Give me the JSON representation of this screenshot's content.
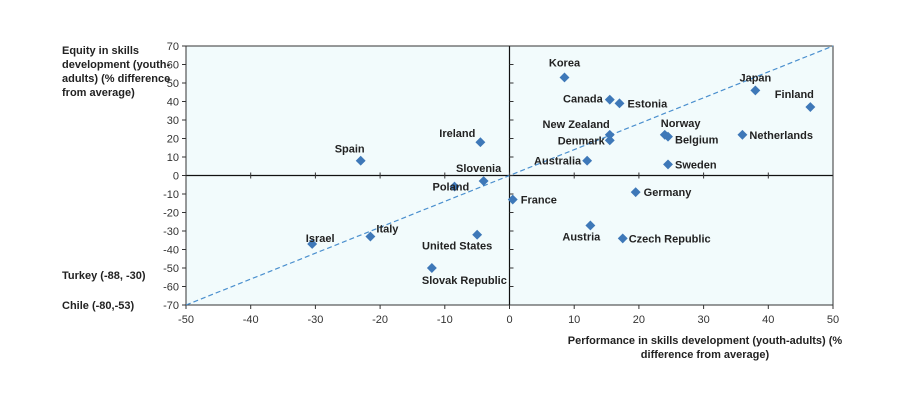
{
  "chart_data": {
    "type": "scatter",
    "xlabel": "Performance in skills development (youth-adults) (% difference from average)",
    "ylabel": "Equity in skills development (youth-adults) (% difference from average)",
    "xlim": [
      -50,
      50
    ],
    "ylim": [
      -70,
      70
    ],
    "xticks": [
      -50,
      -40,
      -30,
      -20,
      -10,
      0,
      10,
      20,
      30,
      40,
      50
    ],
    "yticks": [
      -70,
      -60,
      -50,
      -40,
      -30,
      -20,
      -10,
      0,
      10,
      20,
      30,
      40,
      50,
      60,
      70
    ],
    "trend_line": [
      [
        -50,
        -70
      ],
      [
        50,
        70
      ]
    ],
    "points": [
      {
        "label": "Korea",
        "x": 8.5,
        "y": 53
      },
      {
        "label": "Japan",
        "x": 38,
        "y": 46
      },
      {
        "label": "Finland",
        "x": 46.5,
        "y": 37
      },
      {
        "label": "Canada",
        "x": 15.5,
        "y": 41
      },
      {
        "label": "Estonia",
        "x": 17,
        "y": 39
      },
      {
        "label": "Ireland",
        "x": -4.5,
        "y": 18
      },
      {
        "label": "New Zealand",
        "x": 15.5,
        "y": 22
      },
      {
        "label": "Norway",
        "x": 24,
        "y": 22
      },
      {
        "label": "Belgium",
        "x": 24.5,
        "y": 21
      },
      {
        "label": "Netherlands",
        "x": 36,
        "y": 22
      },
      {
        "label": "Denmark",
        "x": 15.5,
        "y": 19
      },
      {
        "label": "Spain",
        "x": -23,
        "y": 8
      },
      {
        "label": "Australia",
        "x": 12,
        "y": 8
      },
      {
        "label": "Sweden",
        "x": 24.5,
        "y": 6
      },
      {
        "label": "Slovenia",
        "x": -4,
        "y": -3
      },
      {
        "label": "Poland",
        "x": -8.5,
        "y": -6
      },
      {
        "label": "France",
        "x": 0.5,
        "y": -13
      },
      {
        "label": "Germany",
        "x": 19.5,
        "y": -9
      },
      {
        "label": "Israel",
        "x": -30.5,
        "y": -37
      },
      {
        "label": "Italy",
        "x": -21.5,
        "y": -33
      },
      {
        "label": "United States",
        "x": -5,
        "y": -32
      },
      {
        "label": "Austria",
        "x": 12.5,
        "y": -27
      },
      {
        "label": "Czech Republic",
        "x": 17.5,
        "y": -34
      },
      {
        "label": "Slovak Republic",
        "x": -12,
        "y": -50
      }
    ],
    "off_scale_notes": [
      "Turkey (-88, -30)",
      "Chile (-80,-53)"
    ]
  },
  "labels": {
    "ylabel": "Equity in skills development (youth-adults) (% difference from average)",
    "xlabel": "Performance in skills development (youth-adults) (% difference from average)",
    "note_turkey": "Turkey (-88, -30)",
    "note_chile": "Chile (-80,-53)"
  }
}
